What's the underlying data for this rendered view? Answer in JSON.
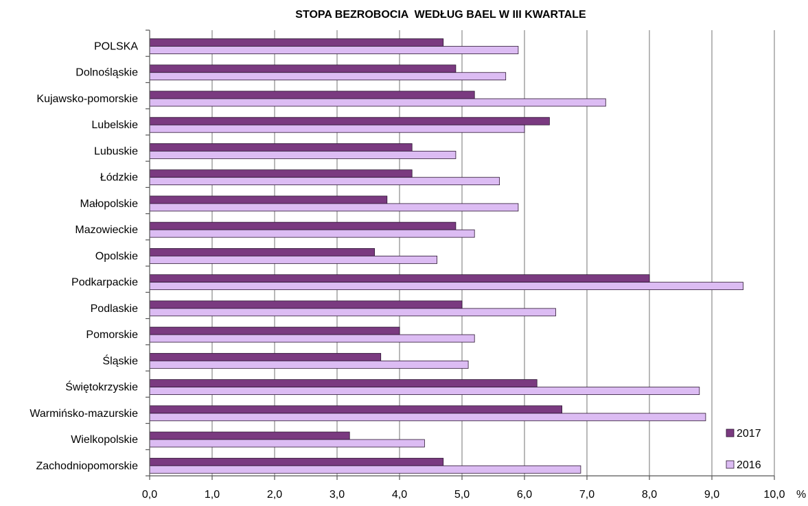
{
  "chart_data": {
    "type": "bar",
    "orientation": "horizontal",
    "title": "STOPA BEZROBOCIA  WEDŁUG BAEL W III KWARTALE",
    "xlabel": "",
    "x_unit": "%",
    "ylabel": "",
    "xlim": [
      0,
      10
    ],
    "x_ticks": [
      "0,0",
      "1,0",
      "2,0",
      "3,0",
      "4,0",
      "5,0",
      "6,0",
      "7,0",
      "8,0",
      "9,0",
      "10,0"
    ],
    "grid": "vertical",
    "legend_position": "bottom-right",
    "categories": [
      "POLSKA",
      "Dolnośląskie",
      "Kujawsko-pomorskie",
      "Lubelskie",
      "Lubuskie",
      "Łódzkie",
      "Małopolskie",
      "Mazowieckie",
      "Opolskie",
      "Podkarpackie",
      "Podlaskie",
      "Pomorskie",
      "Śląskie",
      "Świętokrzyskie",
      "Warmińsko-mazurskie",
      "Wielkopolskie",
      "Zachodniopomorskie"
    ],
    "series": [
      {
        "name": "2017",
        "color": "#7a3a80",
        "values": [
          4.7,
          4.9,
          5.2,
          6.4,
          4.2,
          4.2,
          3.8,
          4.9,
          3.6,
          8.0,
          5.0,
          4.0,
          3.7,
          6.2,
          6.6,
          3.2,
          4.7
        ]
      },
      {
        "name": "2016",
        "color": "#dcbcf3",
        "values": [
          5.9,
          5.7,
          7.3,
          6.0,
          4.9,
          5.6,
          5.9,
          5.2,
          4.6,
          9.5,
          6.5,
          5.2,
          5.1,
          8.8,
          8.9,
          4.4,
          6.9
        ]
      }
    ]
  }
}
